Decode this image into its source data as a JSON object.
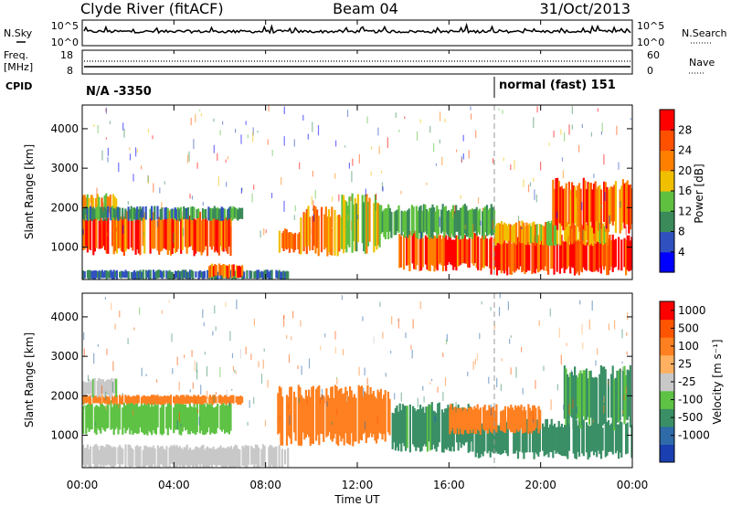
{
  "header": {
    "station": "Clyde River (fitACF)",
    "beam": "Beam 04",
    "date": "31/Oct/2013"
  },
  "status_panel": {
    "nsky_label": "N.Sky",
    "nsky_ticks": [
      "10^5",
      "10^0"
    ],
    "nsearch_label": "N.Search",
    "nsearch_ticks": [
      "10^5",
      "10^0"
    ],
    "freq_label": "Freq.",
    "freq_unit": "[MHz]",
    "freq_ticks": [
      "18",
      "8"
    ],
    "nave_label": "Nave",
    "nave_ticks": [
      "60",
      "0"
    ],
    "cpid_label": "CPID",
    "cpid_segments": [
      {
        "start_hour": 0,
        "text": "N/A -3350"
      },
      {
        "start_hour": 18,
        "text": "normal (fast) 151"
      }
    ]
  },
  "x_axis": {
    "label": "Time UT",
    "ticks": [
      "00:00",
      "04:00",
      "08:00",
      "12:00",
      "16:00",
      "20:00",
      "00:00"
    ]
  },
  "power_colorbar": {
    "label": "Power [dB]",
    "ticks": [
      "4",
      "8",
      "12",
      "16",
      "20",
      "24",
      "28"
    ],
    "colors": [
      "#0000ff",
      "#3050c0",
      "#3a8a5a",
      "#5fc040",
      "#f0c000",
      "#ff8000",
      "#ff5000",
      "#ff0000"
    ]
  },
  "velocity_colorbar": {
    "label": "Velocity [m s⁻¹]",
    "ticks": [
      "1000",
      "500",
      "100",
      "25",
      "-25",
      "-100",
      "-500",
      "-1000"
    ],
    "colors": [
      "#1a3fb0",
      "#2e6ba8",
      "#3a8f66",
      "#5ec244",
      "#c8c8c8",
      "#ffb060",
      "#ff8020",
      "#ff5500",
      "#ff0000"
    ]
  },
  "chart_data": [
    {
      "type": "heatmap",
      "title": "",
      "xlabel": "Time UT",
      "ylabel": "Slant Range [km]",
      "xlim": [
        0,
        24
      ],
      "ylim": [
        180,
        4600
      ],
      "y_ticks": [
        1000,
        2000,
        3000,
        4000
      ],
      "colorbar": "Power [dB]",
      "zlim": [
        0,
        32
      ],
      "regions": [
        {
          "t": [
            0.0,
            6.5
          ],
          "r": [
            900,
            1800
          ],
          "level": 26
        },
        {
          "t": [
            0.0,
            1.5
          ],
          "r": [
            1800,
            2300
          ],
          "level": 20
        },
        {
          "t": [
            0.0,
            7.0
          ],
          "r": [
            1700,
            2000
          ],
          "level": 10
        },
        {
          "t": [
            0.0,
            9.0
          ],
          "r": [
            200,
            400
          ],
          "level": 8
        },
        {
          "t": [
            5.5,
            7.0
          ],
          "r": [
            250,
            550
          ],
          "level": 26
        },
        {
          "t": [
            8.5,
            9.5
          ],
          "r": [
            900,
            1400
          ],
          "level": 22
        },
        {
          "t": [
            9.5,
            11.3
          ],
          "r": [
            900,
            1900
          ],
          "level": 22
        },
        {
          "t": [
            11.3,
            13.0
          ],
          "r": [
            1000,
            2200
          ],
          "level": 16
        },
        {
          "t": [
            13.8,
            17.8
          ],
          "r": [
            500,
            1300
          ],
          "level": 26
        },
        {
          "t": [
            17.8,
            24.0
          ],
          "r": [
            400,
            1200
          ],
          "level": 28
        },
        {
          "t": [
            18.0,
            23.0
          ],
          "r": [
            1100,
            1600
          ],
          "level": 20
        },
        {
          "t": [
            20.5,
            24.0
          ],
          "r": [
            1500,
            2600
          ],
          "level": 24
        },
        {
          "t": [
            13.0,
            18.0
          ],
          "r": [
            1300,
            2000
          ],
          "level": 12
        }
      ]
    },
    {
      "type": "heatmap",
      "title": "",
      "xlabel": "Time UT",
      "ylabel": "Slant Range [km]",
      "xlim": [
        0,
        24
      ],
      "ylim": [
        180,
        4600
      ],
      "y_ticks": [
        1000,
        2000,
        3000,
        4000
      ],
      "colorbar": "Velocity [m s⁻¹]",
      "zlim": [
        -1000,
        1000
      ],
      "regions": [
        {
          "t": [
            0.0,
            6.5
          ],
          "r": [
            1100,
            1800
          ],
          "level": 80
        },
        {
          "t": [
            0.0,
            7.0
          ],
          "r": [
            1800,
            2000
          ],
          "level": -120
        },
        {
          "t": [
            0.0,
            1.5
          ],
          "r": [
            2000,
            2400
          ],
          "level": 20
        },
        {
          "t": [
            0.0,
            9.0
          ],
          "r": [
            200,
            700
          ],
          "level": 10
        },
        {
          "t": [
            8.5,
            13.5
          ],
          "r": [
            900,
            2100
          ],
          "level": -200
        },
        {
          "t": [
            13.5,
            17.0
          ],
          "r": [
            700,
            1700
          ],
          "level": 120
        },
        {
          "t": [
            17.0,
            24.0
          ],
          "r": [
            500,
            1300
          ],
          "level": 150
        },
        {
          "t": [
            21.0,
            24.0
          ],
          "r": [
            1300,
            2600
          ],
          "level": 110
        },
        {
          "t": [
            16.0,
            20.0
          ],
          "r": [
            1100,
            1700
          ],
          "level": -150
        }
      ]
    }
  ]
}
